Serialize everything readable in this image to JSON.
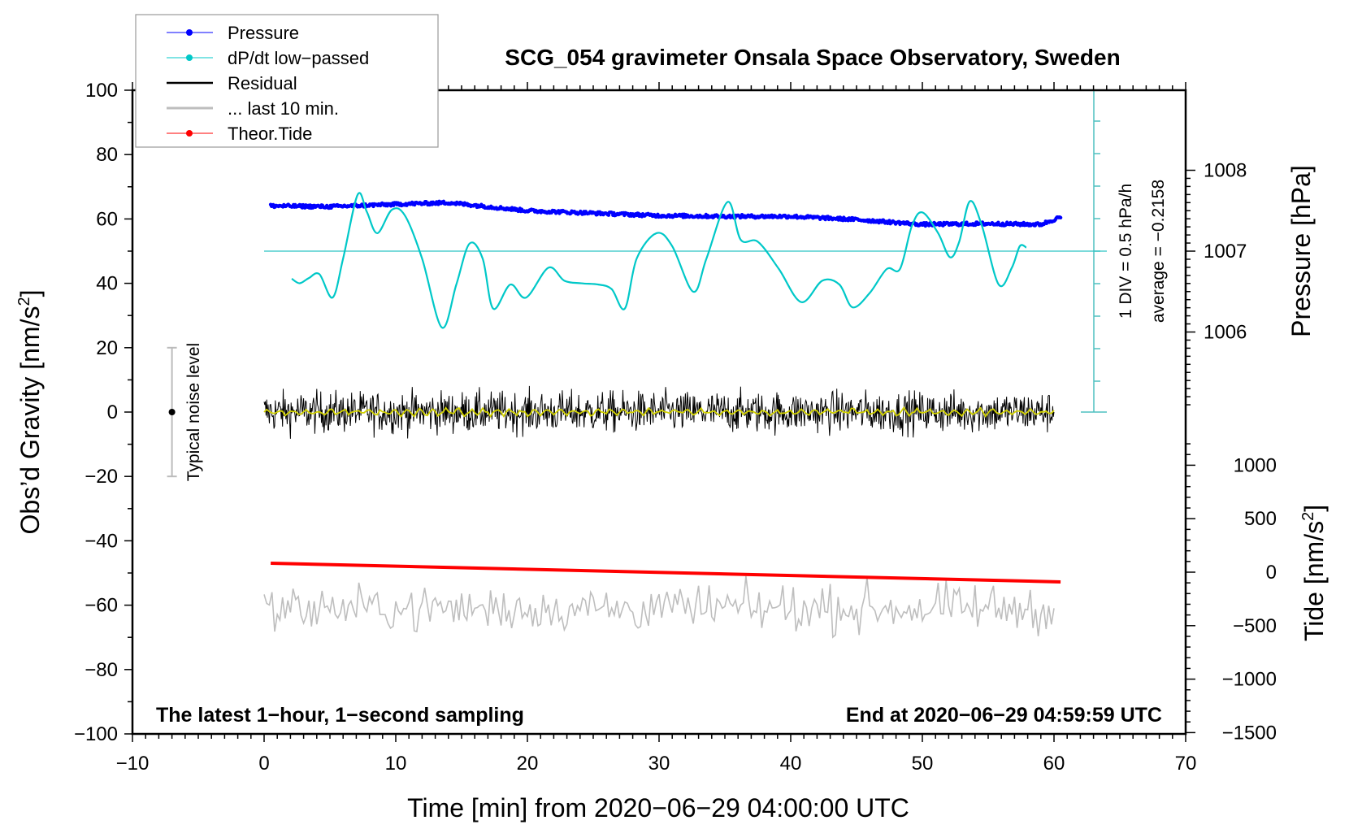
{
  "chart_data": {
    "type": "line",
    "title": "SCG_054 gravimeter Onsala Space Observatory, Sweden",
    "xlabel": "Time [min] from 2020−06−29 04:00:00 UTC",
    "ylabel": "Obs’d Gravity [nm/s²]",
    "ylabel_main": "Obs’d Gravity [nm/s",
    "ylabel_sup": "2",
    "ylabel_end": "]",
    "y2label": "Pressure [hPa]",
    "y3label_main": "Tide [nm/s",
    "y3label_sup": "2",
    "y3label_end": "]",
    "xlim": [
      -10,
      70
    ],
    "ylim": [
      -100,
      100
    ],
    "pressure_lim": [
      1006,
      1008
    ],
    "tide_lim": [
      -1500,
      1000
    ],
    "x_ticks": [
      "−10",
      "0",
      "10",
      "20",
      "30",
      "40",
      "50",
      "60",
      "70"
    ],
    "y_ticks": [
      "100",
      "80",
      "60",
      "40",
      "20",
      "0",
      "−20",
      "−40",
      "−60",
      "−80",
      "−100"
    ],
    "pressure_ticks": [
      "1008",
      "1007",
      "1006"
    ],
    "tide_ticks": [
      "1000",
      "500",
      "0",
      "−500",
      "−1000",
      "−1500"
    ],
    "legend": {
      "placement": "top-left",
      "entries": [
        {
          "label": "Pressure",
          "color": "#0000ff",
          "marker": true
        },
        {
          "label": "dP/dt low−passed",
          "color": "#00c8c8",
          "marker": true
        },
        {
          "label": "Residual",
          "color": "#000000",
          "marker": false
        },
        {
          "label": "... last 10 min.",
          "color": "#bebebe",
          "marker": false
        },
        {
          "label": "Theor.Tide",
          "color": "#ff0000",
          "marker": true
        }
      ]
    },
    "annotations": {
      "bottom_left": "The latest 1−hour, 1−second sampling",
      "bottom_right": "End at 2020−06−29 04:59:59 UTC",
      "div_label": "1 DIV = 0.5 hPa/h",
      "average_label": "average = −0.2158",
      "noise_label": "Typical noise level"
    },
    "dpdt_average": -0.2158,
    "dpdt_div": 0.5,
    "noise_level": {
      "x": -7,
      "range": [
        -20,
        20
      ]
    },
    "series": [
      {
        "name": "Pressure",
        "unit": "hPa",
        "color": "#0000ff",
        "x": [
          0.5,
          5,
          10,
          14,
          20,
          25,
          30,
          35,
          40,
          45,
          50,
          55,
          59,
          60.5
        ],
        "values": [
          1007.56,
          1007.55,
          1007.58,
          1007.6,
          1007.5,
          1007.47,
          1007.44,
          1007.43,
          1007.43,
          1007.39,
          1007.33,
          1007.34,
          1007.33,
          1007.42
        ]
      },
      {
        "name": "dP/dt low-passed",
        "unit": "hPa/h",
        "color": "#00c8c8",
        "x": [
          2.1,
          2.7,
          3.4,
          4.2,
          5.2,
          6.0,
          7.1,
          7.8,
          8.6,
          9.7,
          10.7,
          12.0,
          13.5,
          14.6,
          15.6,
          16.6,
          17.4,
          18.7,
          19.9,
          21.6,
          22.8,
          24.1,
          25.4,
          26.4,
          27.4,
          28.3,
          29.8,
          31.0,
          32.6,
          33.6,
          35.2,
          36.2,
          37.5,
          39.1,
          40.8,
          42.4,
          43.7,
          44.7,
          46.0,
          47.3,
          48.3,
          49.2,
          50.0,
          51.2,
          52.1,
          52.8,
          53.6,
          54.5,
          55.8,
          56.8,
          57.4,
          57.9
        ],
        "values": [
          -0.64,
          -0.71,
          -0.63,
          -0.57,
          -0.93,
          -0.33,
          0.65,
          0.39,
          0.06,
          0.42,
          0.33,
          -0.33,
          -1.39,
          -0.73,
          -0.1,
          -0.33,
          -1.1,
          -0.73,
          -0.93,
          -0.47,
          -0.67,
          -0.71,
          -0.73,
          -0.8,
          -1.1,
          -0.33,
          0.06,
          -0.14,
          -0.84,
          -0.33,
          0.54,
          -0.04,
          -0.07,
          -0.49,
          -1.0,
          -0.67,
          -0.73,
          -1.08,
          -0.86,
          -0.49,
          -0.49,
          0.17,
          0.38,
          0.06,
          -0.31,
          -0.07,
          0.55,
          0.19,
          -0.73,
          -0.47,
          -0.14,
          -0.16
        ]
      },
      {
        "name": "Residual",
        "unit": "nm/s2",
        "color": "#000000",
        "x_range": [
          0,
          60
        ],
        "center": 0,
        "amplitude": 8
      },
      {
        "name": "Residual smoothed",
        "unit": "nm/s2",
        "color": "#d2d200",
        "x_range": [
          0,
          60
        ],
        "center": 0,
        "amplitude": 1.5
      },
      {
        "name": "... last 10 min.",
        "unit": "nm/s2",
        "color": "#bebebe",
        "x_range": [
          0,
          60
        ],
        "center": -61,
        "amplitude": 7
      },
      {
        "name": "Theor.Tide",
        "unit": "nm/s2",
        "color": "#ff0000",
        "x": [
          0.5,
          60.5
        ],
        "values": [
          84,
          -91
        ]
      }
    ]
  }
}
